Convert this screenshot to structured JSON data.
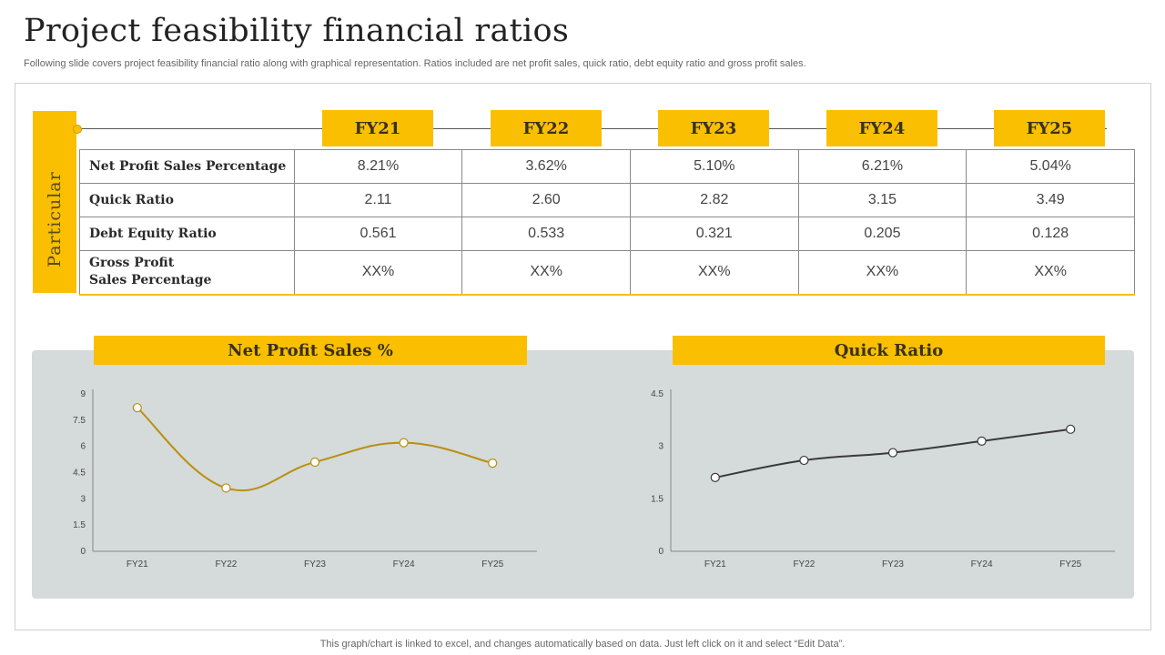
{
  "title": "Project feasibility financial ratios",
  "subtitle": "Following slide covers project feasibility financial ratio along with graphical representation. Ratios included are net profit sales, quick ratio, debt equity ratio and gross profit sales.",
  "side_label": "Particular",
  "years": [
    "FY21",
    "FY22",
    "FY23",
    "FY24",
    "FY25"
  ],
  "table": {
    "rows": [
      {
        "label": "Net Profit Sales Percentage",
        "label_line2": "",
        "values": [
          "8.21%",
          "3.62%",
          "5.10%",
          "6.21%",
          "5.04%"
        ]
      },
      {
        "label": "Quick Ratio",
        "label_line2": "",
        "values": [
          "2.11",
          "2.60",
          "2.82",
          "3.15",
          "3.49"
        ]
      },
      {
        "label": "Debt Equity Ratio",
        "label_line2": "",
        "values": [
          "0.561",
          "0.533",
          "0.321",
          "0.205",
          "0.128"
        ]
      },
      {
        "label": "Gross Profit",
        "label_line2": "Sales Percentage",
        "values": [
          "XX%",
          "XX%",
          "XX%",
          "XX%",
          "XX%"
        ]
      }
    ]
  },
  "chart_data": [
    {
      "type": "line",
      "title": "Net Profit Sales %",
      "categories": [
        "FY21",
        "FY22",
        "FY23",
        "FY24",
        "FY25"
      ],
      "values": [
        8.21,
        3.62,
        5.1,
        6.21,
        5.04
      ],
      "ylim": [
        0,
        9
      ],
      "yticks": [
        "0",
        "1.5",
        "3",
        "4.5",
        "6",
        "7.5",
        "9"
      ],
      "color": "#b8900e",
      "smooth": true
    },
    {
      "type": "line",
      "title": "Quick Ratio",
      "categories": [
        "FY21",
        "FY22",
        "FY23",
        "FY24",
        "FY25"
      ],
      "values": [
        2.11,
        2.6,
        2.82,
        3.15,
        3.49
      ],
      "ylim": [
        0,
        4.5
      ],
      "yticks": [
        "0",
        "1.5",
        "3",
        "4.5"
      ],
      "color": "#3a3a3a",
      "smooth": true
    }
  ],
  "colors": {
    "accent": "#f9bf00",
    "panel": "#d5dadb"
  },
  "footer": "This graph/chart is linked to excel,  and changes automatically based on data. Just left click on it and select “Edit Data”."
}
